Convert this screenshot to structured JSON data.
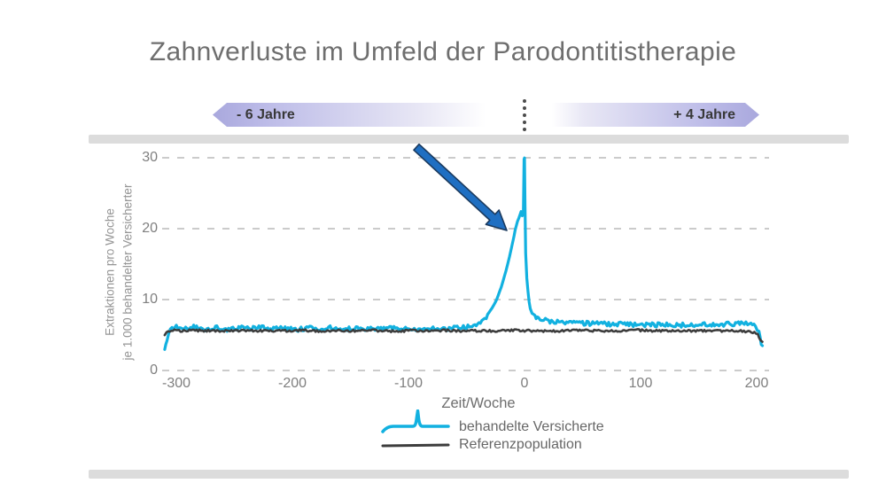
{
  "title": "Zahnverluste im Umfeld der Parodontitistherapie",
  "timeline": {
    "left_label": "- 6 Jahre",
    "right_label": "+ 4 Jahre"
  },
  "colors": {
    "accent_cyan": "#12b1e0",
    "reference_dark": "#3d3d3d",
    "arrow_blue": "#1f6fc2",
    "arrow_outline": "#1b3a5e",
    "timeline_lavender": "#a9a8dd",
    "grid": "#cbcbcb",
    "frame_bar": "#dcdcdc"
  },
  "chart_data": {
    "type": "line",
    "title": "Zahnverluste im Umfeld der Parodontitistherapie",
    "xlabel": "Zeit/Woche",
    "ylabel": "Extraktionen pro Woche je 1.000 behandelter Versicherter",
    "ylabel_lines": [
      "Extraktionen pro Woche",
      "je 1.000 behandelter Versicherter"
    ],
    "xlim": [
      -315,
      210
    ],
    "ylim": [
      0,
      31
    ],
    "xticks": [
      -300,
      -200,
      -100,
      0,
      100,
      200
    ],
    "yticks": [
      0,
      10,
      20,
      30
    ],
    "grid": "horizontal dashed",
    "legend_position": "bottom center",
    "annotation": {
      "type": "arrow",
      "meaning": "arrow pointing to the extraction peak of treated insured around week 0 (peak 30 extractions per week per 1,000 treated)"
    },
    "series": [
      {
        "name": "behandelte Versicherte",
        "color": "#12b1e0",
        "points": [
          [
            -310,
            3.0
          ],
          [
            -308,
            4.4
          ],
          [
            -305,
            5.7
          ],
          [
            -300,
            6.1
          ],
          [
            -292,
            5.9
          ],
          [
            -285,
            6.15
          ],
          [
            -275,
            5.85
          ],
          [
            -265,
            6.05
          ],
          [
            -255,
            5.8
          ],
          [
            -245,
            6.0
          ],
          [
            -235,
            5.9
          ],
          [
            -225,
            6.1
          ],
          [
            -215,
            5.85
          ],
          [
            -205,
            5.95
          ],
          [
            -195,
            5.8
          ],
          [
            -185,
            6.0
          ],
          [
            -175,
            5.9
          ],
          [
            -165,
            6.05
          ],
          [
            -155,
            5.85
          ],
          [
            -145,
            5.95
          ],
          [
            -135,
            5.8
          ],
          [
            -125,
            5.9
          ],
          [
            -115,
            5.95
          ],
          [
            -105,
            5.8
          ],
          [
            -95,
            5.9
          ],
          [
            -85,
            5.95
          ],
          [
            -75,
            5.85
          ],
          [
            -65,
            5.95
          ],
          [
            -58,
            6.0
          ],
          [
            -50,
            6.1
          ],
          [
            -44,
            6.4
          ],
          [
            -38,
            6.9
          ],
          [
            -33,
            7.6
          ],
          [
            -28,
            8.8
          ],
          [
            -24,
            10.0
          ],
          [
            -20,
            11.8
          ],
          [
            -16,
            14.0
          ],
          [
            -13,
            16.0
          ],
          [
            -10,
            18.2
          ],
          [
            -8,
            19.8
          ],
          [
            -6,
            21.0
          ],
          [
            -4,
            21.9
          ],
          [
            -3,
            22.4
          ],
          [
            -2,
            21.8
          ],
          [
            -1,
            22.1
          ],
          [
            -0.4,
            29.8
          ],
          [
            0,
            30.0
          ],
          [
            0.4,
            24.0
          ],
          [
            1,
            16.5
          ],
          [
            2,
            13.0
          ],
          [
            3,
            11.2
          ],
          [
            4,
            9.7
          ],
          [
            5,
            8.7
          ],
          [
            6.5,
            8.1
          ],
          [
            8,
            7.9
          ],
          [
            10,
            7.6
          ],
          [
            12,
            7.4
          ],
          [
            15,
            7.15
          ],
          [
            18,
            7.05
          ],
          [
            22,
            6.95
          ],
          [
            27,
            6.85
          ],
          [
            35,
            6.8
          ],
          [
            45,
            6.7
          ],
          [
            60,
            6.6
          ],
          [
            75,
            6.55
          ],
          [
            90,
            6.5
          ],
          [
            105,
            6.45
          ],
          [
            120,
            6.45
          ],
          [
            135,
            6.4
          ],
          [
            150,
            6.45
          ],
          [
            165,
            6.45
          ],
          [
            178,
            6.55
          ],
          [
            188,
            6.6
          ],
          [
            195,
            6.5
          ],
          [
            199,
            6.3
          ],
          [
            202,
            5.3
          ],
          [
            204,
            3.9
          ],
          [
            205,
            3.5
          ]
        ]
      },
      {
        "name": "Referenzpopulation",
        "color": "#3d3d3d",
        "points": [
          [
            -310,
            5.1
          ],
          [
            -307,
            5.5
          ],
          [
            -303,
            5.65
          ],
          [
            -295,
            5.6
          ],
          [
            -280,
            5.65
          ],
          [
            -265,
            5.55
          ],
          [
            -250,
            5.6
          ],
          [
            -235,
            5.65
          ],
          [
            -220,
            5.55
          ],
          [
            -205,
            5.6
          ],
          [
            -190,
            5.65
          ],
          [
            -175,
            5.55
          ],
          [
            -160,
            5.6
          ],
          [
            -145,
            5.6
          ],
          [
            -130,
            5.65
          ],
          [
            -115,
            5.55
          ],
          [
            -100,
            5.6
          ],
          [
            -85,
            5.6
          ],
          [
            -70,
            5.65
          ],
          [
            -55,
            5.55
          ],
          [
            -40,
            5.6
          ],
          [
            -25,
            5.6
          ],
          [
            -10,
            5.65
          ],
          [
            5,
            5.6
          ],
          [
            20,
            5.55
          ],
          [
            35,
            5.6
          ],
          [
            50,
            5.65
          ],
          [
            65,
            5.6
          ],
          [
            80,
            5.55
          ],
          [
            95,
            5.7
          ],
          [
            110,
            5.6
          ],
          [
            125,
            5.55
          ],
          [
            140,
            5.6
          ],
          [
            155,
            5.6
          ],
          [
            170,
            5.55
          ],
          [
            185,
            5.6
          ],
          [
            193,
            5.5
          ],
          [
            198,
            5.35
          ],
          [
            201,
            5.0
          ],
          [
            203,
            4.5
          ],
          [
            205,
            4.05
          ]
        ]
      }
    ]
  }
}
